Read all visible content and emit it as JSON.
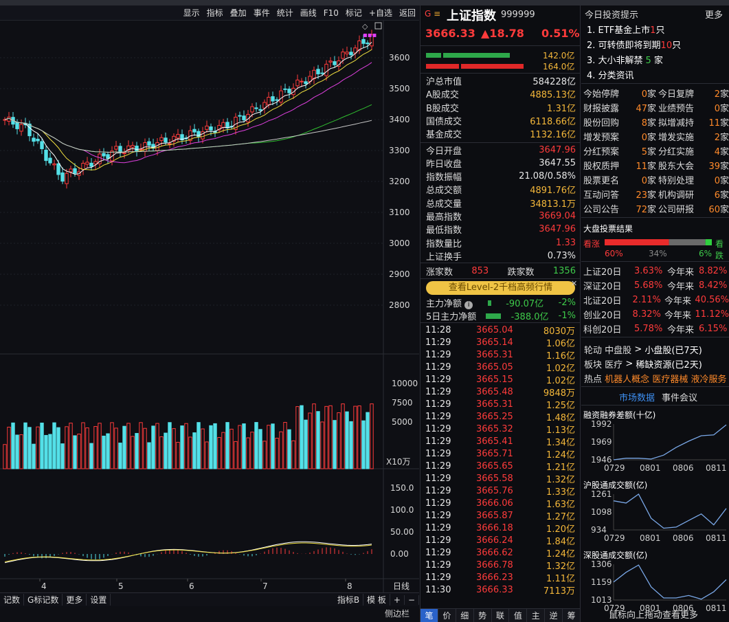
{
  "toolbar": {
    "items": [
      "显示",
      "指标",
      "叠加",
      "事件",
      "统计",
      "画线",
      "F10",
      "标记",
      "+自选",
      "返回"
    ]
  },
  "chart": {
    "price_axis": [
      "3600",
      "3500",
      "3400",
      "3300",
      "3200",
      "3100",
      "3000",
      "2900",
      "2800"
    ],
    "volume_axis": [
      "10000",
      "7500",
      "5000"
    ],
    "volume_unit": "X10万",
    "macd_axis": [
      "150.0",
      "100.0",
      "50.00",
      "0.00"
    ],
    "date_axis": [
      "4",
      "5",
      "6",
      "7",
      "8"
    ],
    "period_label": "日线"
  },
  "bottom_tabs": {
    "left": [
      "记数",
      "G标记数",
      "更多",
      "设置"
    ],
    "right": [
      "指标B",
      "模 板",
      "+",
      "−"
    ],
    "sidebar": "侧边栏"
  },
  "quote": {
    "title": "上证指数",
    "code": "999999",
    "price": "3666.33",
    "change": "▲18.78",
    "pct": "0.51%",
    "bar_up_value": "142.0亿",
    "bar_down_value": "164.0亿",
    "stats": [
      {
        "label": "沪总市值",
        "value": "584228亿",
        "color": "white"
      },
      {
        "label": "A股成交",
        "value": "4885.13亿",
        "color": "gold"
      },
      {
        "label": "B股成交",
        "value": "1.31亿",
        "color": "gold"
      },
      {
        "label": "国债成交",
        "value": "6118.66亿",
        "color": "gold"
      },
      {
        "label": "基金成交",
        "value": "1132.16亿",
        "color": "gold"
      },
      {
        "label": "今日开盘",
        "value": "3647.96",
        "color": "red"
      },
      {
        "label": "昨日收盘",
        "value": "3647.55",
        "color": "white"
      },
      {
        "label": "指数振幅",
        "value": "21.08/0.58%",
        "color": "white"
      },
      {
        "label": "总成交额",
        "value": "4891.76亿",
        "color": "gold"
      },
      {
        "label": "总成交量",
        "value": "34813.1万",
        "color": "gold"
      },
      {
        "label": "最高指数",
        "value": "3669.04",
        "color": "red"
      },
      {
        "label": "最低指数",
        "value": "3647.96",
        "color": "red"
      },
      {
        "label": "指数量比",
        "value": "1.33",
        "color": "red"
      },
      {
        "label": "上证换手",
        "value": "0.73%",
        "color": "white"
      }
    ],
    "up_label": "涨家数",
    "up_count": "853",
    "down_label": "跌家数",
    "down_count": "1356",
    "level2_banner": "查看Level-2千档高频行情",
    "main_flow_label": "主力净额",
    "main_flow_value": "-90.07亿",
    "main_flow_pct": "-2%",
    "main_flow5_label": "5日主力净额",
    "main_flow5_value": "-388.0亿",
    "main_flow5_pct": "-1%"
  },
  "ticks": [
    {
      "t": "11:28",
      "p": "3665.04",
      "v": "8030万"
    },
    {
      "t": "11:29",
      "p": "3665.14",
      "v": "1.06亿"
    },
    {
      "t": "11:29",
      "p": "3665.31",
      "v": "1.16亿"
    },
    {
      "t": "11:29",
      "p": "3665.05",
      "v": "1.02亿"
    },
    {
      "t": "11:29",
      "p": "3665.15",
      "v": "1.02亿"
    },
    {
      "t": "11:29",
      "p": "3665.48",
      "v": "9848万"
    },
    {
      "t": "11:29",
      "p": "3665.31",
      "v": "1.25亿"
    },
    {
      "t": "11:29",
      "p": "3665.25",
      "v": "1.48亿"
    },
    {
      "t": "11:29",
      "p": "3665.32",
      "v": "1.13亿"
    },
    {
      "t": "11:29",
      "p": "3665.41",
      "v": "1.34亿"
    },
    {
      "t": "11:29",
      "p": "3665.71",
      "v": "1.24亿"
    },
    {
      "t": "11:29",
      "p": "3665.65",
      "v": "1.21亿"
    },
    {
      "t": "11:29",
      "p": "3665.58",
      "v": "1.32亿"
    },
    {
      "t": "11:29",
      "p": "3665.76",
      "v": "1.33亿"
    },
    {
      "t": "11:29",
      "p": "3666.06",
      "v": "1.63亿"
    },
    {
      "t": "11:29",
      "p": "3665.87",
      "v": "1.27亿"
    },
    {
      "t": "11:29",
      "p": "3666.18",
      "v": "1.20亿"
    },
    {
      "t": "11:29",
      "p": "3666.24",
      "v": "1.84亿"
    },
    {
      "t": "11:29",
      "p": "3666.62",
      "v": "1.24亿"
    },
    {
      "t": "11:29",
      "p": "3666.78",
      "v": "1.32亿"
    },
    {
      "t": "11:29",
      "p": "3666.23",
      "v": "1.11亿"
    },
    {
      "t": "11:30",
      "p": "3666.33",
      "v": "7113万"
    }
  ],
  "mid_tabs": [
    "笔",
    "价",
    "细",
    "势",
    "联",
    "值",
    "主",
    "逆",
    "筹"
  ],
  "tips": {
    "title": "今日投资提示",
    "more": "更多",
    "items": [
      {
        "text": "1. ETF基金上市",
        "num": "1",
        "unit": "只"
      },
      {
        "text": "2. 可转债即将到期",
        "num": "10",
        "unit": "只"
      },
      {
        "text": "3. 大小非解禁",
        "num": "5",
        "unit": "家"
      },
      {
        "text": "4. 分类资讯",
        "num": "",
        "unit": ""
      }
    ]
  },
  "events": [
    [
      {
        "l": "今始停牌",
        "n": "0"
      },
      {
        "l": "今日复牌",
        "n": "2"
      }
    ],
    [
      {
        "l": "财报披露",
        "n": "47"
      },
      {
        "l": "业绩预告",
        "n": "0"
      }
    ],
    [
      {
        "l": "股份回购",
        "n": "8"
      },
      {
        "l": "拟增减持",
        "n": "11"
      }
    ],
    [
      {
        "l": "增发预案",
        "n": "0"
      },
      {
        "l": "增发实施",
        "n": "2"
      }
    ],
    [
      {
        "l": "分红预案",
        "n": "5"
      },
      {
        "l": "分红实施",
        "n": "4"
      }
    ],
    [
      {
        "l": "股权质押",
        "n": "11"
      },
      {
        "l": "股东大会",
        "n": "39"
      }
    ],
    [
      {
        "l": "股票更名",
        "n": "0"
      },
      {
        "l": "特别处理",
        "n": "0"
      }
    ],
    [
      {
        "l": "互动问答",
        "n": "23"
      },
      {
        "l": "机构调研",
        "n": "6"
      }
    ],
    [
      {
        "l": "公司公告",
        "n": "72"
      },
      {
        "l": "公司研报",
        "n": "60"
      }
    ]
  ],
  "event_unit": "家",
  "vote": {
    "title": "大盘投票结果",
    "up_label": "看涨",
    "down_label": "看跌",
    "up_pct": "60%",
    "mid_pct": "34%",
    "down_pct": "6%",
    "up_frac": 0.6,
    "mid_frac": 0.34,
    "down_frac": 0.06
  },
  "index_perf": [
    {
      "name": "上证20日",
      "d20": "3.63%",
      "ytd_label": "今年来",
      "ytd": "8.82%"
    },
    {
      "name": "深证20日",
      "d20": "5.68%",
      "ytd_label": "今年来",
      "ytd": "8.42%"
    },
    {
      "name": "北证20日",
      "d20": "2.11%",
      "ytd_label": "今年来",
      "ytd": "40.56%"
    },
    {
      "name": "创业20日",
      "d20": "8.32%",
      "ytd_label": "今年来",
      "ytd": "11.12%"
    },
    {
      "name": "科创20日",
      "d20": "5.78%",
      "ytd_label": "今年来",
      "ytd": "6.15%"
    }
  ],
  "rotation": {
    "line1_label": "轮动",
    "line1_a": "中盘股",
    "line1_b": "小盘股(已7天)",
    "line2_label": "板块",
    "line2_a": "医疗",
    "line2_b": "稀缺资源(已2天)",
    "hot_label": "热点",
    "hot_items": [
      "机器人概念",
      "医疗器械",
      "液冷服务"
    ]
  },
  "market_tabs": [
    "市场数据",
    "事件会议"
  ],
  "mini_charts": [
    {
      "title": "融资融券差额(十亿)",
      "ylabels": [
        "1992",
        "1969",
        "1946"
      ],
      "xlabels": [
        "0729",
        "0801",
        "0806",
        "0811"
      ],
      "values": [
        1946,
        1948,
        1948,
        1947,
        1952,
        1962,
        1970,
        1977,
        1978,
        1991
      ]
    },
    {
      "title": "沪股通成交额(亿)",
      "ylabels": [
        "1261",
        "1098",
        "934"
      ],
      "xlabels": [
        "0729",
        "0801",
        "0806",
        "0811"
      ],
      "values": [
        1200,
        1180,
        1261,
        1040,
        950,
        960,
        1020,
        1080,
        980,
        1130
      ]
    },
    {
      "title": "深股通成交额(亿)",
      "ylabels": [
        "1306",
        "1159",
        "1013"
      ],
      "xlabels": [
        "0729",
        "0801",
        "0806",
        "0811"
      ],
      "values": [
        1160,
        1240,
        1300,
        1120,
        1030,
        1030,
        1050,
        1020,
        1080,
        1180
      ]
    }
  ],
  "scroll_hint": "鼠标向上拖动查看更多"
}
